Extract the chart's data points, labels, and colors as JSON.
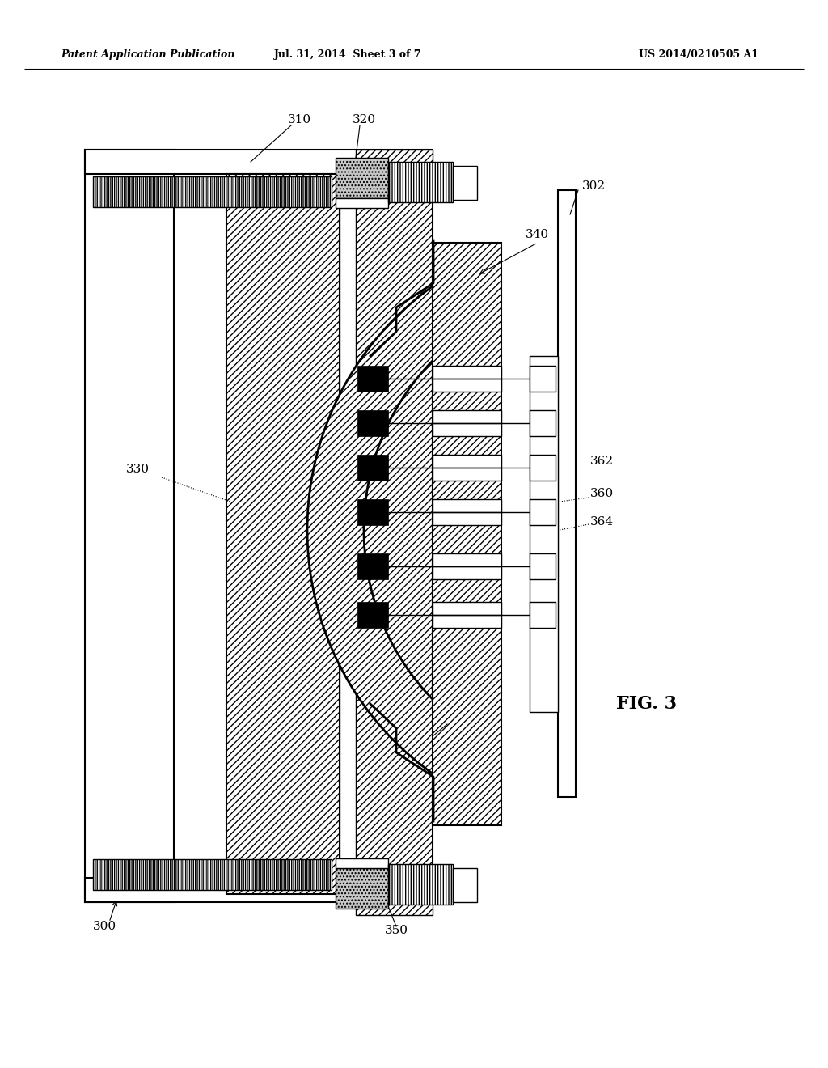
{
  "title_left": "Patent Application Publication",
  "title_mid": "Jul. 31, 2014  Sheet 3 of 7",
  "title_right": "US 2014/0210505 A1",
  "fig_label": "FIG. 3",
  "bg_color": "#ffffff",
  "line_color": "#000000"
}
